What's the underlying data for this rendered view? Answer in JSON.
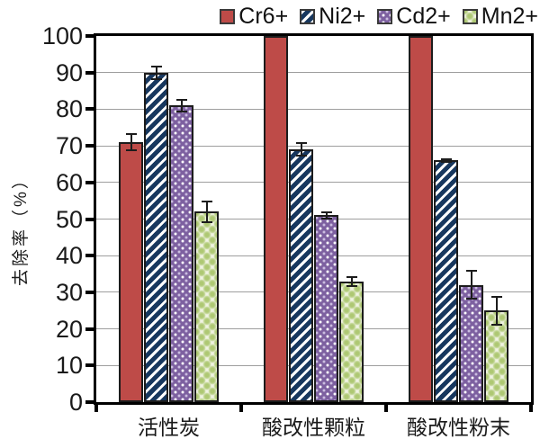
{
  "chart_data": {
    "type": "bar",
    "title": "",
    "ylabel": "去除率（%）",
    "xlabel": "",
    "ylim": [
      0,
      100
    ],
    "ytick_step": 10,
    "yticks": [
      0,
      10,
      20,
      30,
      40,
      50,
      60,
      70,
      80,
      90,
      100
    ],
    "grid": true,
    "legend_position": "top-right",
    "categories": [
      "活性炭",
      "酸改性颗粒",
      "酸改性粉末"
    ],
    "series": [
      {
        "name": "Cr6+",
        "pattern": "solid",
        "color": "#BE4B48",
        "values": [
          71,
          100,
          100
        ],
        "errors": [
          2.5,
          0,
          0
        ]
      },
      {
        "name": "Ni2+",
        "pattern": "diagonal-stripes",
        "color": "#17375E",
        "values": [
          90,
          69,
          66
        ],
        "errors": [
          2,
          2,
          0.7
        ]
      },
      {
        "name": "Cd2+",
        "pattern": "dots",
        "color": "#7D60A0",
        "values": [
          81,
          51,
          32
        ],
        "errors": [
          1.8,
          1.2,
          4
        ]
      },
      {
        "name": "Mn2+",
        "pattern": "circles",
        "color": "#C3D69B",
        "values": [
          52,
          33,
          25
        ],
        "errors": [
          3,
          1.5,
          4
        ]
      }
    ]
  },
  "colors": {
    "axis": "#000000",
    "gridline": "#9E9E9E",
    "error_bar": "#1C1C1C",
    "background": "#FFFFFF"
  }
}
